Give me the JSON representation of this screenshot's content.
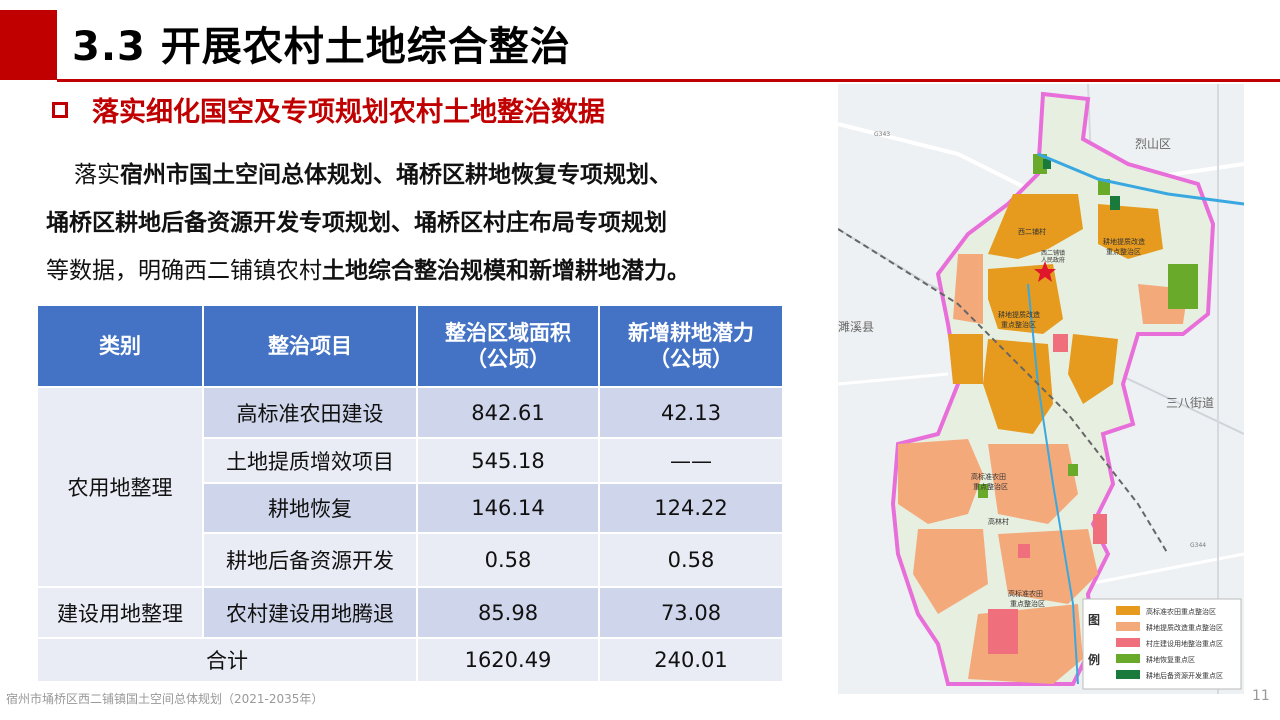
{
  "title": "3.3 开展农村土地综合整治",
  "subtitle": "落实细化国空及专项规划农村土地整治数据",
  "paragraph": {
    "line1_prefix": "落实",
    "line1_bold": "宿州市国土空间总体规划、埇桥区耕地恢复专项规划、",
    "line2_bold": "埇桥区耕地后备资源开发专项规划、埇桥区村庄布局专项规划",
    "line3_prefix": "等数据，明确西二铺镇农村",
    "line3_bold": "土地综合整治规模和新增耕地潜力。"
  },
  "table": {
    "headers": [
      "类别",
      "整治项目",
      "整治区域面积\n（公顷）",
      "新增耕地潜力\n（公顷）"
    ],
    "header_area_line1": "整治区域面积",
    "header_area_line2": "（公顷）",
    "header_potential_line1": "新增耕地潜力",
    "header_potential_line2": "（公顷）",
    "category1": "农用地整理",
    "category2": "建设用地整理",
    "rows": [
      {
        "item": "高标准农田建设",
        "area": "842.61",
        "potential": "42.13"
      },
      {
        "item": "土地提质增效项目",
        "area": "545.18",
        "potential": "——"
      },
      {
        "item": "耕地恢复",
        "area": "146.14",
        "potential": "124.22"
      },
      {
        "item": "耕地后备资源开发",
        "area": "0.58",
        "potential": "0.58"
      },
      {
        "item": "农村建设用地腾退",
        "area": "85.98",
        "potential": "73.08"
      }
    ],
    "total_label": "合计",
    "total_area": "1620.49",
    "total_potential": "240.01"
  },
  "map": {
    "labels": {
      "lieshan": "烈山区",
      "suixi": "濉溪县",
      "sanba": "三八街道",
      "xierpu_village": "西二铺村",
      "gov": "西二铺镇",
      "gov2": "人民政府",
      "gaolin": "高林村",
      "zone_tizhi1": "耕地提质改造",
      "zone_tizhi2": "重点整治区",
      "zone_tizhi_b1": "耕地提质改造",
      "zone_tizhi_b2": "重点整治区",
      "zone_gaobiao1": "高标准农田",
      "zone_gaobiao2": "重点整治区",
      "zone_gaobiao_b1": "高标准农田",
      "zone_gaobiao_b2": "重点整治区",
      "road_g343": "G343",
      "road_g344": "G344"
    },
    "legend": {
      "title_top": "图",
      "title_bottom": "例",
      "items": [
        {
          "label": "高标准农田重点整治区",
          "color": "#e69b1e"
        },
        {
          "label": "耕地提质改造重点整治区",
          "color": "#f4a97a"
        },
        {
          "label": "村庄建设用地整治重点区",
          "color": "#ef6f7d"
        },
        {
          "label": "耕地恢复重点区",
          "color": "#6aaa2a"
        },
        {
          "label": "耕地后备资源开发重点区",
          "color": "#1a7a3c"
        }
      ]
    }
  },
  "footer": "宿州市埇桥区西二铺镇国土空间总体规划（2021-2035年）",
  "page_number": "11"
}
